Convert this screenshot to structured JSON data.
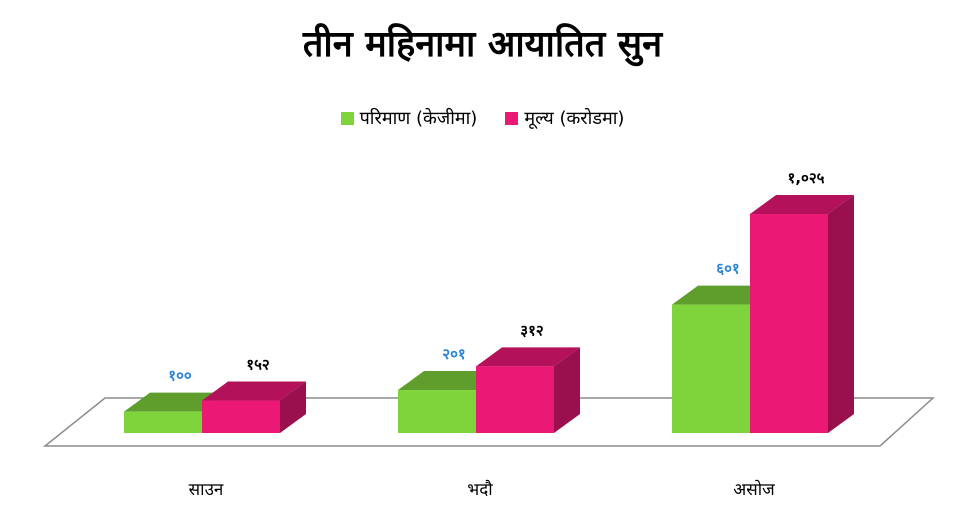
{
  "chart_data": {
    "type": "bar",
    "title": "तीन महिनामा आयातित सुन",
    "categories": [
      "साउन",
      "भदौ",
      "असोज"
    ],
    "series": [
      {
        "name": "परिमाण (केजीमा)",
        "values": [
          100,
          201,
          601
        ],
        "value_labels": [
          "१००",
          "२०१",
          "६०१"
        ],
        "color": "#7fd43b",
        "top_color": "#5f9e2c",
        "label_color": "#2e86d6"
      },
      {
        "name": "मूल्य (करोडमा)",
        "values": [
          152,
          312,
          1025
        ],
        "value_labels": [
          "१५२",
          "३१२",
          "१,०२५"
        ],
        "color": "#ec1876",
        "top_color": "#b3125a",
        "side_color": "#9a0f4d",
        "label_color": "#000000"
      }
    ],
    "ylim": [
      0,
      1100
    ],
    "grid": false,
    "legend_position": "top-center"
  }
}
